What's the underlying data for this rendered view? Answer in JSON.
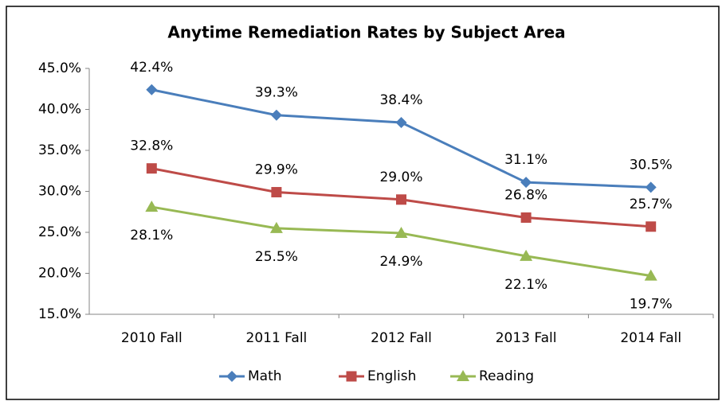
{
  "chart_data": {
    "type": "line",
    "title": "Anytime Remediation Rates by Subject Area",
    "categories": [
      "2010 Fall",
      "2011 Fall",
      "2012 Fall",
      "2013 Fall",
      "2014 Fall"
    ],
    "series": [
      {
        "name": "Math",
        "color": "#4a7ebb",
        "values": [
          42.4,
          39.3,
          38.4,
          31.1,
          30.5
        ],
        "value_labels": [
          "42.4%",
          "39.3%",
          "38.4%",
          "31.1%",
          "30.5%"
        ]
      },
      {
        "name": "English",
        "color": "#be4b48",
        "values": [
          32.8,
          29.9,
          29.0,
          26.8,
          25.7
        ],
        "value_labels": [
          "32.8%",
          "29.9%",
          "29.0%",
          "26.8%",
          "25.7%"
        ]
      },
      {
        "name": "Reading",
        "color": "#98b954",
        "values": [
          28.1,
          25.5,
          24.9,
          22.1,
          19.7
        ],
        "value_labels": [
          "28.1%",
          "25.5%",
          "24.9%",
          "22.1%",
          "19.7%"
        ]
      }
    ],
    "ylim": [
      15,
      45
    ],
    "yticks": [
      {
        "value": 15,
        "label": "15.0%"
      },
      {
        "value": 20,
        "label": "20.0%"
      },
      {
        "value": 25,
        "label": "25.0%"
      },
      {
        "value": 30,
        "label": "30.0%"
      },
      {
        "value": 35,
        "label": "35.0%"
      },
      {
        "value": 40,
        "label": "40.0%"
      },
      {
        "value": 45,
        "label": "45.0%"
      }
    ],
    "grid": false,
    "legend": "bottom"
  }
}
